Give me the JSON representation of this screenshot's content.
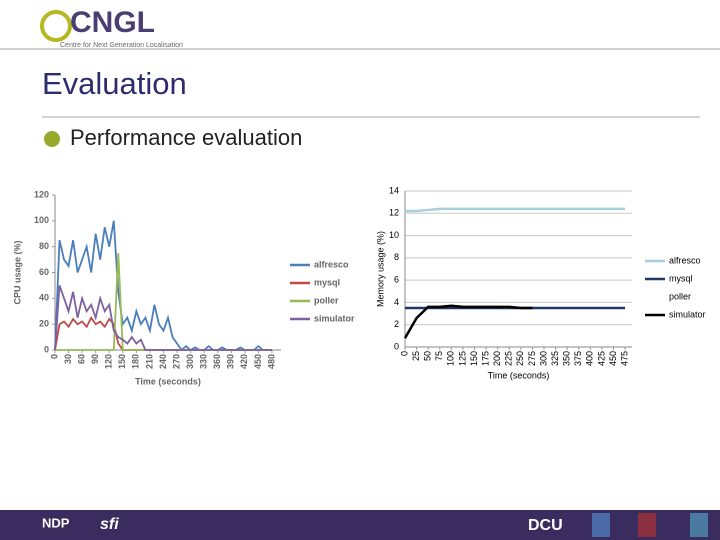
{
  "header": {
    "logo": "CNGL",
    "logo_subtitle": "Centre for Next Generation Localisation"
  },
  "title": "Evaluation",
  "bullet": "Performance evaluation",
  "footer": {
    "left_logo": "NDP",
    "middle_logo": "sfi",
    "right_logo": "DCU"
  },
  "chart_data": [
    {
      "type": "line",
      "xlabel": "Time (seconds)",
      "ylabel": "CPU usage (%)",
      "x": [
        0,
        10,
        20,
        30,
        40,
        50,
        60,
        70,
        80,
        90,
        100,
        110,
        120,
        130,
        140,
        150,
        160,
        170,
        180,
        190,
        200,
        210,
        220,
        230,
        240,
        250,
        260,
        270,
        280,
        290,
        300,
        310,
        320,
        330,
        340,
        350,
        360,
        370,
        380,
        390,
        400,
        410,
        420,
        430,
        440,
        450,
        460,
        470,
        480
      ],
      "xlim": [
        0,
        500
      ],
      "xticks": [
        0,
        30,
        60,
        90,
        120,
        150,
        180,
        210,
        240,
        270,
        300,
        330,
        360,
        390,
        420,
        450,
        480
      ],
      "ylim": [
        0,
        120
      ],
      "yticks": [
        0,
        20,
        40,
        60,
        80,
        100,
        120
      ],
      "grid": false,
      "legend": "right",
      "series": [
        {
          "name": "alfresco",
          "color": "#4a7ebb",
          "values": [
            0,
            85,
            70,
            65,
            85,
            60,
            70,
            80,
            60,
            90,
            70,
            95,
            80,
            100,
            45,
            20,
            25,
            15,
            30,
            20,
            25,
            15,
            35,
            20,
            15,
            25,
            10,
            5,
            0,
            3,
            0,
            2,
            0,
            0,
            3,
            0,
            0,
            2,
            0,
            0,
            0,
            2,
            0,
            0,
            0,
            3,
            0,
            0,
            0
          ]
        },
        {
          "name": "mysql",
          "color": "#be4b48",
          "values": [
            0,
            20,
            22,
            18,
            24,
            20,
            22,
            18,
            25,
            20,
            22,
            18,
            24,
            20,
            5,
            0,
            0,
            0,
            0,
            0,
            0,
            0,
            0,
            0,
            0,
            0,
            0,
            0,
            0,
            0,
            0,
            0,
            0,
            0,
            0,
            0,
            0,
            0,
            0,
            0,
            0,
            0,
            0,
            0,
            0,
            0,
            0,
            0,
            0
          ]
        },
        {
          "name": "poller",
          "color": "#98b954",
          "values": [
            0,
            0,
            0,
            0,
            0,
            0,
            0,
            0,
            0,
            0,
            0,
            0,
            0,
            0,
            75,
            0,
            0,
            0,
            0,
            0,
            0,
            0,
            0,
            0,
            0,
            0,
            0,
            0,
            0,
            0,
            0,
            0,
            0,
            0,
            0,
            0,
            0,
            0,
            0,
            0,
            0,
            0,
            0,
            0,
            0,
            0,
            0,
            0,
            0
          ]
        },
        {
          "name": "simulator",
          "color": "#7d60a0",
          "values": [
            0,
            50,
            40,
            30,
            45,
            25,
            40,
            30,
            35,
            25,
            40,
            30,
            35,
            15,
            10,
            8,
            5,
            10,
            5,
            8,
            0,
            0,
            0,
            0,
            0,
            0,
            0,
            0,
            0,
            0,
            0,
            0,
            0,
            0,
            0,
            0,
            0,
            0,
            0,
            0,
            0,
            0,
            0,
            0,
            0,
            0,
            0,
            0,
            0
          ]
        }
      ]
    },
    {
      "type": "line",
      "xlabel": "Time (seconds)",
      "ylabel": "Memory usage (%)",
      "x": [
        0,
        25,
        50,
        75,
        100,
        125,
        150,
        175,
        200,
        225,
        250,
        275,
        300,
        325,
        350,
        375,
        400,
        425,
        450,
        475
      ],
      "xlim": [
        0,
        490
      ],
      "xticks": [
        0,
        25,
        50,
        75,
        100,
        125,
        150,
        175,
        200,
        225,
        250,
        275,
        300,
        325,
        350,
        375,
        400,
        425,
        450,
        475
      ],
      "ylim": [
        0,
        14
      ],
      "yticks": [
        0,
        2,
        4,
        6,
        8,
        10,
        12,
        14
      ],
      "grid": true,
      "legend": "right",
      "series": [
        {
          "name": "alfresco",
          "color": "#a8d0dc",
          "values": [
            12.2,
            12.2,
            12.3,
            12.4,
            12.4,
            12.4,
            12.4,
            12.4,
            12.4,
            12.4,
            12.4,
            12.4,
            12.4,
            12.4,
            12.4,
            12.4,
            12.4,
            12.4,
            12.4,
            12.4
          ]
        },
        {
          "name": "mysql",
          "color": "#1f3864",
          "values": [
            3.5,
            3.5,
            3.5,
            3.5,
            3.5,
            3.5,
            3.5,
            3.5,
            3.5,
            3.5,
            3.5,
            3.5,
            3.5,
            3.5,
            3.5,
            3.5,
            3.5,
            3.5,
            3.5,
            3.5
          ]
        },
        {
          "name": "poller",
          "color": "#ffffff",
          "values": [
            null,
            null,
            null,
            null,
            null,
            null,
            null,
            null,
            null,
            null,
            null,
            null,
            null,
            null,
            null,
            null,
            null,
            null,
            null,
            null
          ]
        },
        {
          "name": "simulator",
          "color": "#000000",
          "values": [
            0.8,
            2.6,
            3.6,
            3.6,
            3.7,
            3.6,
            3.6,
            3.6,
            3.6,
            3.6,
            3.5,
            3.5,
            null,
            null,
            null,
            null,
            null,
            null,
            null,
            null
          ]
        }
      ]
    }
  ]
}
